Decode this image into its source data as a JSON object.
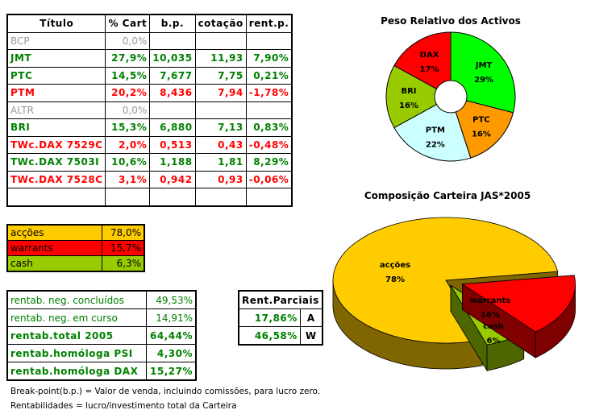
{
  "main_table": {
    "headers": [
      "Título",
      "% Cart",
      "b.p.",
      "cotação",
      "rent.p."
    ],
    "rows": [
      {
        "titulo": "BCP",
        "cart": "0,0%",
        "bp": "",
        "cot": "",
        "rent": "",
        "status": "gray"
      },
      {
        "titulo": "JMT",
        "cart": "27,9%",
        "bp": "10,035",
        "cot": "11,93",
        "rent": "7,90%",
        "status": "g"
      },
      {
        "titulo": "PTC",
        "cart": "14,5%",
        "bp": "7,677",
        "cot": "7,75",
        "rent": "0,21%",
        "status": "g"
      },
      {
        "titulo": "PTM",
        "cart": "20,2%",
        "bp": "8,436",
        "cot": "7,94",
        "rent": "-1,78%",
        "status": "red"
      },
      {
        "titulo": "ALTR",
        "cart": "0,0%",
        "bp": "",
        "cot": "",
        "rent": "",
        "status": "gray"
      },
      {
        "titulo": "BRI",
        "cart": "15,3%",
        "bp": "6,880",
        "cot": "7,13",
        "rent": "0,83%",
        "status": "g"
      },
      {
        "titulo": "TWc.DAX 7529C",
        "cart": "2,0%",
        "bp": "0,513",
        "cot": "0,43",
        "rent": "-0,48%",
        "status": "red"
      },
      {
        "titulo": "TWc.DAX 7503I",
        "cart": "10,6%",
        "bp": "1,188",
        "cot": "1,81",
        "rent": "8,29%",
        "status": "g"
      },
      {
        "titulo": "TWc.DAX 7528C",
        "cart": "3,1%",
        "bp": "0,942",
        "cot": "0,93",
        "rent": "-0,06%",
        "status": "red"
      },
      {
        "titulo": "",
        "cart": "",
        "bp": "",
        "cot": "",
        "rent": "",
        "status": ""
      }
    ]
  },
  "allocation": [
    {
      "label": "acções",
      "value": "78,0%",
      "color": "#ffcc00"
    },
    {
      "label": "warrants",
      "value": "15,7%",
      "color": "#ff0000"
    },
    {
      "label": "cash",
      "value": "6,3%",
      "color": "#99cc00"
    }
  ],
  "rentab": [
    {
      "label": "rentab. neg. concluídos",
      "value": "49,53%",
      "bold": false
    },
    {
      "label": "rentab. neg. em curso",
      "value": "14,91%",
      "bold": false
    },
    {
      "label": "rentab.total 2005",
      "value": "64,44%",
      "bold": true
    },
    {
      "label": "rentab.homóloga PSI",
      "value": "4,30%",
      "bold": true
    },
    {
      "label": "rentab.homóloga DAX",
      "value": "15,27%",
      "bold": true
    }
  ],
  "rent_parciais": {
    "header": "Rent.Parciais",
    "rows": [
      {
        "value": "17,86%",
        "code": "A"
      },
      {
        "value": "46,58%",
        "code": "W"
      }
    ]
  },
  "notes": [
    "Break-point(b.p.) = Valor de venda, incluindo comissões, para lucro zero.",
    "Rentabilidades = lucro/investimento total da Carteira"
  ],
  "chart_data": [
    {
      "type": "pie",
      "variant": "doughnut",
      "title": "Peso Relativo dos Activos",
      "categories": [
        "JMT",
        "PTC",
        "PTM",
        "BRI",
        "DAX"
      ],
      "values": [
        29,
        16,
        22,
        16,
        17
      ],
      "labels": [
        "29%",
        "16%",
        "22%",
        "16%",
        "17%"
      ],
      "colors": [
        "#00ff00",
        "#ff9900",
        "#ccffff",
        "#99cc00",
        "#ff0000"
      ]
    },
    {
      "type": "pie",
      "variant": "3d-exploded",
      "title": "Composição Carteira JAS*2005",
      "categories": [
        "warrants",
        "cash",
        "acções"
      ],
      "values": [
        16,
        6,
        78
      ],
      "labels": [
        "16%",
        "6%",
        "78%"
      ],
      "colors": [
        "#ff0000",
        "#99cc00",
        "#ffcc00"
      ],
      "side_colors": [
        "#800000",
        "#4d6600",
        "#806600"
      ]
    }
  ]
}
